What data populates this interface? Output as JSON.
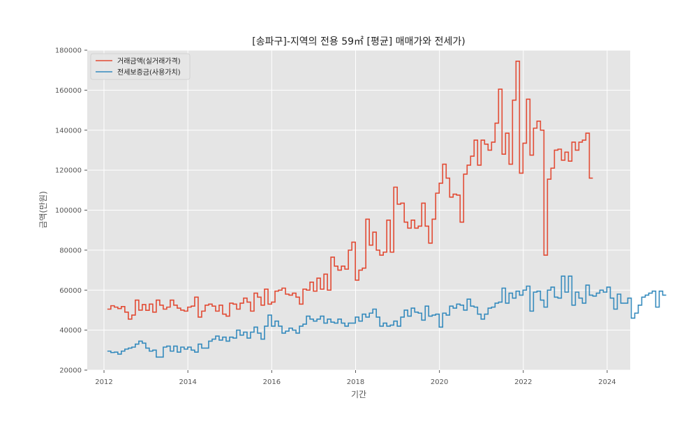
{
  "chart_data": {
    "type": "line",
    "title": "[송파구]-지역의 전용 59㎡ [평균] 매매가와 전세가)",
    "xlabel": "기간",
    "ylabel": "금액(만원)",
    "xlim": [
      2011.6,
      2024.55
    ],
    "ylim": [
      20000,
      180000
    ],
    "x_ticks": [
      2012,
      2014,
      2016,
      2018,
      2020,
      2022,
      2024
    ],
    "y_ticks": [
      20000,
      40000,
      60000,
      80000,
      100000,
      120000,
      140000,
      160000,
      180000
    ],
    "grid": true,
    "legend_position": "upper-left",
    "colors": {
      "background": "#e5e5e5",
      "grid": "#ffffff",
      "sale": "#e24a33",
      "jeonse": "#348abd"
    },
    "series": [
      {
        "name": "거래금액(실거래가격)",
        "color": "#e24a33",
        "x_start": 2012.08,
        "x_step": 0.0833,
        "values": [
          50500,
          52200,
          51500,
          50800,
          51800,
          49000,
          45500,
          47500,
          55000,
          50000,
          52800,
          49900,
          53000,
          49000,
          55000,
          52500,
          50500,
          51500,
          55000,
          52500,
          51000,
          50000,
          49500,
          51500,
          52000,
          56500,
          46500,
          49500,
          52500,
          53000,
          52000,
          49500,
          52500,
          48000,
          47000,
          53500,
          53000,
          50500,
          53500,
          56000,
          54000,
          49500,
          58500,
          56500,
          52500,
          60500,
          53000,
          54000,
          59500,
          60000,
          61000,
          58000,
          57500,
          58500,
          56500,
          53000,
          60500,
          60000,
          64000,
          59500,
          66000,
          60500,
          68000,
          60000,
          76500,
          72000,
          70000,
          72000,
          70500,
          80000,
          84000,
          65000,
          70000,
          71000,
          95500,
          82500,
          89000,
          80000,
          77500,
          79000,
          95000,
          79000,
          111500,
          103000,
          103500,
          94000,
          91000,
          95000,
          91000,
          92000,
          103500,
          92000,
          83500,
          95500,
          108500,
          113500,
          123000,
          116000,
          106500,
          108000,
          107500,
          94000,
          118000,
          122500,
          127000,
          135000,
          122500,
          135000,
          133000,
          130000,
          134000,
          143500,
          160500,
          128000,
          138500,
          123000,
          155000,
          174500,
          118500,
          133500,
          155500,
          127500,
          141000,
          144500,
          140000,
          77500,
          115500,
          121000,
          130000,
          130500,
          125000,
          129000,
          124500,
          134000,
          130000,
          134000,
          135000,
          138500,
          116000,
          116000
        ]
      },
      {
        "name": "전세보증금(사용가치)",
        "color": "#348abd",
        "x_start": 2012.08,
        "x_step": 0.0833,
        "values": [
          29500,
          28800,
          29000,
          28000,
          29500,
          30500,
          31000,
          31500,
          33000,
          34500,
          33500,
          31000,
          29500,
          30000,
          26500,
          26500,
          31500,
          32000,
          29500,
          32000,
          29000,
          31500,
          30500,
          31500,
          30000,
          29000,
          33000,
          31000,
          31000,
          34500,
          35500,
          37000,
          35000,
          36500,
          34500,
          36500,
          36000,
          40000,
          37500,
          39000,
          36000,
          39000,
          41500,
          38500,
          35500,
          42000,
          47500,
          42000,
          44500,
          42000,
          38500,
          39500,
          41000,
          40000,
          38500,
          42000,
          43000,
          47000,
          45500,
          44500,
          45500,
          47000,
          43500,
          45500,
          44000,
          43500,
          45500,
          43500,
          42000,
          43500,
          43500,
          46500,
          44500,
          48000,
          46500,
          48500,
          50500,
          46500,
          42000,
          43500,
          42000,
          42500,
          44500,
          42000,
          46500,
          50000,
          47000,
          51000,
          49000,
          48500,
          45000,
          52000,
          47000,
          47500,
          48000,
          41500,
          48500,
          47500,
          52000,
          51000,
          53000,
          52500,
          50000,
          55500,
          52000,
          51500,
          48000,
          45500,
          48000,
          51000,
          51500,
          53500,
          54000,
          61000,
          53500,
          58500,
          56000,
          59500,
          57500,
          60000,
          62000,
          49500,
          59000,
          59500,
          55000,
          51500,
          60000,
          61500,
          56500,
          56000,
          67000,
          59000,
          67000,
          52500,
          59000,
          56000,
          53500,
          62500,
          57500,
          57000,
          58500,
          60000,
          59000,
          61500,
          56000,
          50500,
          58000,
          53500,
          53500,
          56000,
          46000,
          48500,
          52500,
          56500,
          57500,
          58500,
          59500,
          51500,
          59500,
          57500,
          57500
        ]
      }
    ]
  }
}
